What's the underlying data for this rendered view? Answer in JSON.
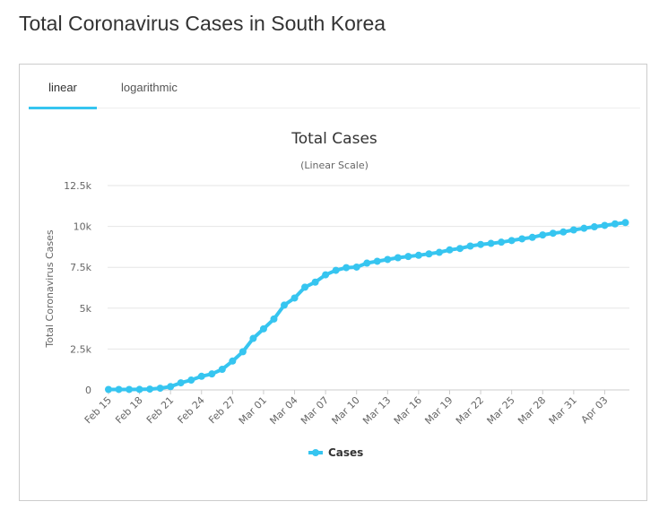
{
  "page": {
    "title": "Total Coronavirus Cases in South Korea"
  },
  "tabs": [
    {
      "label": "linear",
      "active": true
    },
    {
      "label": "logarithmic",
      "active": false
    }
  ],
  "colors": {
    "series": "#36c5f0",
    "accent": "#36c5f0"
  },
  "chart_data": {
    "type": "line",
    "title": "Total Cases",
    "subtitle": "(Linear Scale)",
    "ylabel": "Total Coronavirus Cases",
    "xlabel": "",
    "ylim": [
      0,
      12500
    ],
    "y_ticks": [
      0,
      2500,
      5000,
      7500,
      10000,
      12500
    ],
    "y_tick_labels": [
      "0",
      "2.5k",
      "5k",
      "7.5k",
      "10k",
      "12.5k"
    ],
    "x_tick_labels": [
      "Feb 15",
      "Feb 18",
      "Feb 21",
      "Feb 24",
      "Feb 27",
      "Mar 01",
      "Mar 04",
      "Mar 07",
      "Mar 10",
      "Mar 13",
      "Mar 16",
      "Mar 19",
      "Mar 22",
      "Mar 25",
      "Mar 28",
      "Mar 31",
      "Apr 03"
    ],
    "grid": true,
    "legend": "bottom-center",
    "x": [
      "Feb 15",
      "Feb 16",
      "Feb 17",
      "Feb 18",
      "Feb 19",
      "Feb 20",
      "Feb 21",
      "Feb 22",
      "Feb 23",
      "Feb 24",
      "Feb 25",
      "Feb 26",
      "Feb 27",
      "Feb 28",
      "Feb 29",
      "Mar 01",
      "Mar 02",
      "Mar 03",
      "Mar 04",
      "Mar 05",
      "Mar 06",
      "Mar 07",
      "Mar 08",
      "Mar 09",
      "Mar 10",
      "Mar 11",
      "Mar 12",
      "Mar 13",
      "Mar 14",
      "Mar 15",
      "Mar 16",
      "Mar 17",
      "Mar 18",
      "Mar 19",
      "Mar 20",
      "Mar 21",
      "Mar 22",
      "Mar 23",
      "Mar 24",
      "Mar 25",
      "Mar 26",
      "Mar 27",
      "Mar 28",
      "Mar 29",
      "Mar 30",
      "Mar 31",
      "Apr 01",
      "Apr 02",
      "Apr 03",
      "Apr 04",
      "Apr 05"
    ],
    "series": [
      {
        "name": "Cases",
        "values": [
          28,
          29,
          30,
          31,
          51,
          104,
          204,
          433,
          602,
          833,
          977,
          1261,
          1766,
          2337,
          3150,
          3736,
          4335,
          5186,
          5621,
          6284,
          6593,
          7041,
          7314,
          7478,
          7513,
          7755,
          7869,
          7979,
          8086,
          8162,
          8236,
          8320,
          8413,
          8565,
          8652,
          8799,
          8897,
          8961,
          9037,
          9137,
          9241,
          9332,
          9478,
          9583,
          9661,
          9786,
          9887,
          9976,
          10062,
          10156,
          10237
        ]
      }
    ]
  }
}
